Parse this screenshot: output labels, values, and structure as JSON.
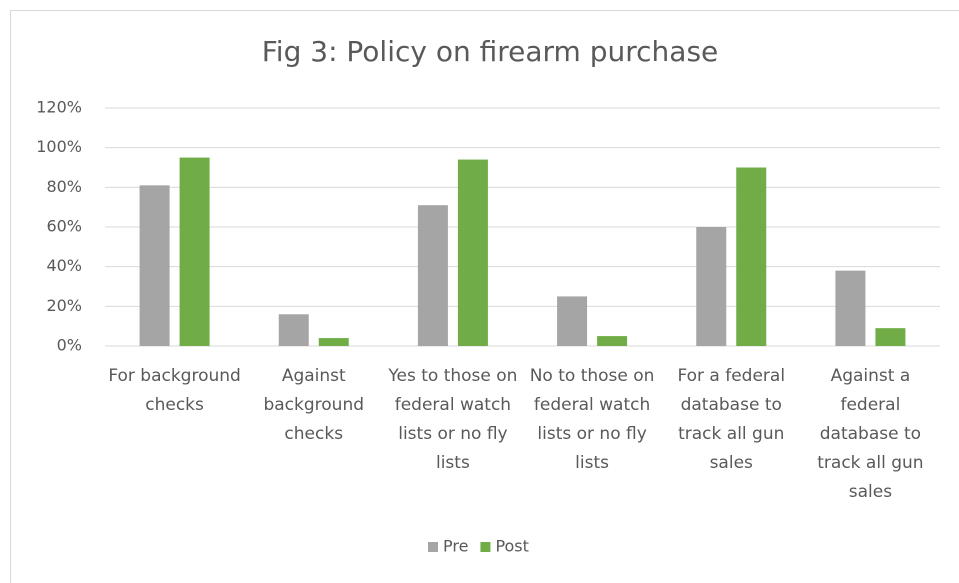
{
  "chart_data": {
    "type": "bar",
    "title": "Fig 3: Policy on firearm purchase",
    "categories": [
      "For background checks",
      "Against background checks",
      "Yes to those on federal watch lists or no fly lists",
      "No to those on federal watch lists or no fly lists",
      "For a federal database to track all gun sales",
      "Against a federal database to track all gun sales"
    ],
    "series": [
      {
        "name": "Pre",
        "color": "#a5a5a5",
        "values": [
          81,
          16,
          71,
          25,
          60,
          38
        ]
      },
      {
        "name": "Post",
        "color": "#70ad47",
        "values": [
          95,
          4,
          94,
          5,
          90,
          9
        ]
      }
    ],
    "ylim": [
      0,
      120
    ],
    "yticks": [
      {
        "value": 0,
        "label": "0%"
      },
      {
        "value": 20,
        "label": "20%"
      },
      {
        "value": 40,
        "label": "40%"
      },
      {
        "value": 60,
        "label": "60%"
      },
      {
        "value": 80,
        "label": "80%"
      },
      {
        "value": 100,
        "label": "100%"
      },
      {
        "value": 120,
        "label": "120%"
      }
    ],
    "grid": true,
    "legend": "bottom"
  }
}
